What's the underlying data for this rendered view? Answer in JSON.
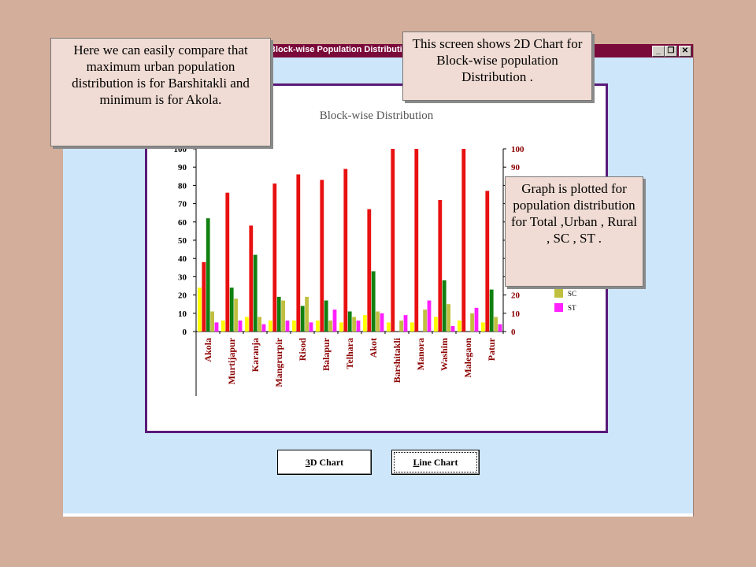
{
  "window": {
    "title": "Block-wise Population Distribution Chart(2D)",
    "controls": [
      "_",
      "❐",
      "✕"
    ]
  },
  "chart_data": {
    "type": "bar",
    "title": "Block-wise Distribution",
    "xlabel": "",
    "ylabel": "",
    "ylim": [
      0,
      100
    ],
    "y_ticks": [
      "0",
      "10",
      "20",
      "30",
      "40",
      "50",
      "60",
      "70",
      "80",
      "90",
      "100"
    ],
    "categories": [
      "Akola",
      "Murtijapur",
      "Karanja",
      "Mangrurpir",
      "Risod",
      "Balapur",
      "Telhara",
      "Akot",
      "Barshitakli",
      "Manora",
      "Washim",
      "Malegaon",
      "Patur"
    ],
    "series": [
      {
        "name": "Total",
        "color": "#ffff00",
        "values": [
          24,
          6,
          8,
          6,
          6,
          6,
          5,
          9,
          5,
          5,
          8,
          6,
          5
        ]
      },
      {
        "name": "Urban",
        "color": "#e81010",
        "values": [
          38,
          76,
          58,
          81,
          86,
          83,
          89,
          67,
          100,
          100,
          72,
          100,
          77
        ]
      },
      {
        "name": "Rural",
        "color": "#108010",
        "values": [
          62,
          24,
          42,
          19,
          14,
          17,
          11,
          33,
          0,
          0,
          28,
          0,
          23
        ]
      },
      {
        "name": "SC",
        "color": "#c0c040",
        "values": [
          11,
          18,
          8,
          17,
          19,
          6,
          8,
          11,
          6,
          12,
          15,
          10,
          8
        ]
      },
      {
        "name": "ST",
        "color": "#ff20ff",
        "values": [
          5,
          6,
          4,
          6,
          5,
          12,
          6,
          10,
          9,
          17,
          3,
          13,
          4
        ]
      }
    ],
    "legend_visible": [
      "SC",
      "ST"
    ],
    "legend_position": "right",
    "grid": false
  },
  "buttons": {
    "chart3d": {
      "pre": "",
      "ul": "3",
      "post": "D Chart"
    },
    "line": {
      "pre": "",
      "ul": "L",
      "post": "ine Chart"
    }
  },
  "callouts": {
    "compare": "Here we can easily compare that maximum urban population distribution is for Barshitakli and minimum is for Akola.",
    "screen": "This screen shows 2D Chart for Block-wise population Distribution .",
    "graph": "Graph is plotted for population distribution for Total ,Urban , Rural , SC , ST ."
  }
}
